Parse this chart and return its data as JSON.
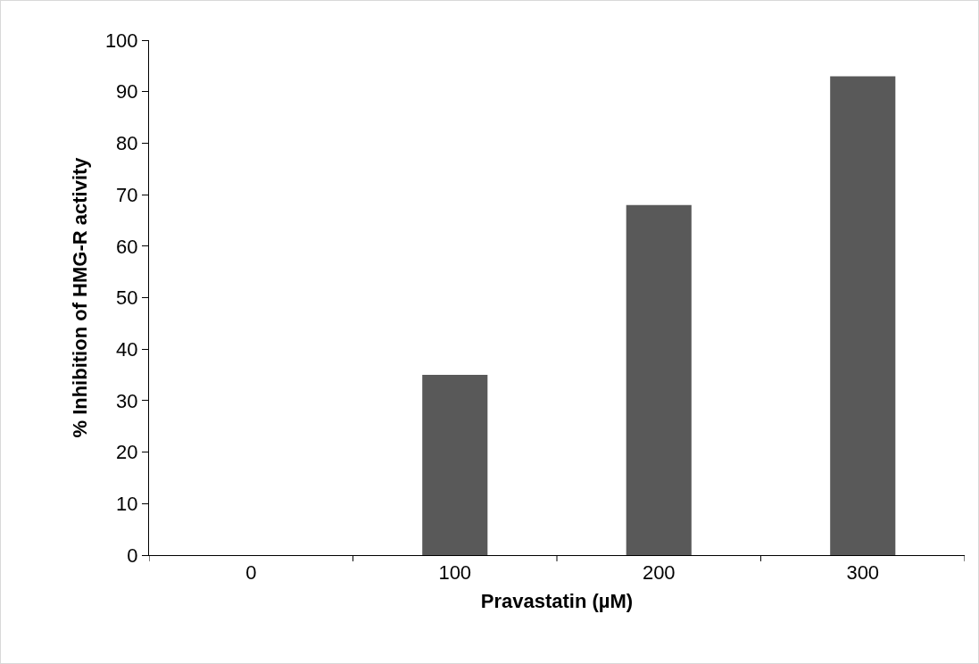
{
  "chart_data": {
    "type": "bar",
    "xlabel": "Pravastatin (µM)",
    "ylabel": "% Inhibition of HMG-R activity",
    "categories": [
      "0",
      "100",
      "200",
      "300"
    ],
    "values": [
      0,
      35,
      68,
      93
    ],
    "color": "#595959",
    "ylim": [
      0,
      100
    ],
    "yticks": [
      0,
      10,
      20,
      30,
      40,
      50,
      60,
      70,
      80,
      90,
      100
    ],
    "grid": false
  }
}
